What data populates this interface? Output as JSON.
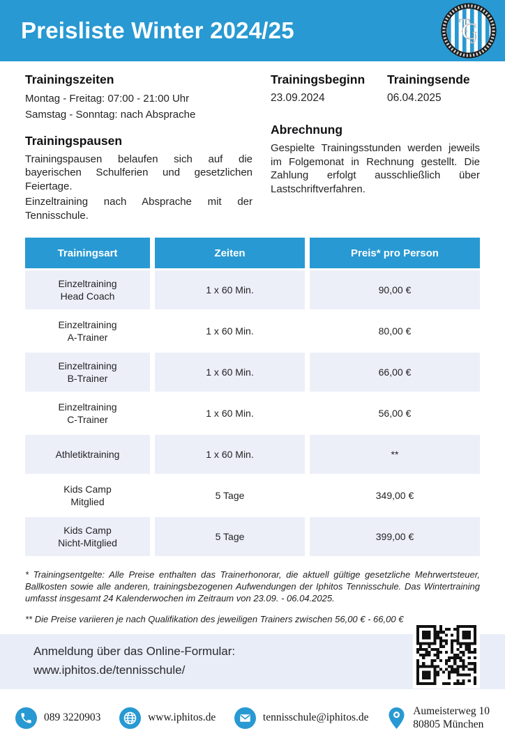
{
  "header": {
    "title": "Preisliste Winter 2024/25",
    "logo_icon": "club-crest-logo"
  },
  "colors": {
    "accent": "#2899D2",
    "table_row": "#EDEFF8",
    "signup_banner": "#E9EDF7"
  },
  "info": {
    "trainingszeiten": {
      "heading": "Trainingszeiten",
      "line1": "Montag - Freitag: 07:00 - 21:00 Uhr",
      "line2": "Samstag - Sonntag: nach Absprache"
    },
    "trainingsbeginn": {
      "heading": "Trainingsbeginn",
      "value": "23.09.2024"
    },
    "trainingsende": {
      "heading": "Trainingsende",
      "value": "06.04.2025"
    },
    "trainingspausen": {
      "heading": "Trainingspausen",
      "para1": "Trainingspausen belaufen sich auf die bayerischen Schulferien und gesetzlichen Feiertage.",
      "para2": "Einzeltraining nach Absprache mit der Tennisschule."
    },
    "abrechnung": {
      "heading": "Abrechnung",
      "para": "Gespielte Trainingsstunden werden jeweils im Folgemonat in Rechnung gestellt. Die Zahlung erfolgt ausschließlich über Lastschriftverfahren."
    }
  },
  "table": {
    "headers": [
      "Trainingsart",
      "Zeiten",
      "Preis* pro Person"
    ],
    "rows": [
      {
        "art": "Einzeltraining\nHead Coach",
        "zeiten": "1 x 60 Min.",
        "preis": "90,00 €"
      },
      {
        "art": "Einzeltraining\nA-Trainer",
        "zeiten": "1 x 60 Min.",
        "preis": "80,00 €"
      },
      {
        "art": "Einzeltraining\nB-Trainer",
        "zeiten": "1 x 60 Min.",
        "preis": "66,00 €"
      },
      {
        "art": "Einzeltraining\nC-Trainer",
        "zeiten": "1 x 60 Min.",
        "preis": "56,00 €"
      },
      {
        "art": "Athletiktraining",
        "zeiten": "1 x 60 Min.",
        "preis": "**"
      },
      {
        "art": "Kids Camp\nMitglied",
        "zeiten": "5 Tage",
        "preis": "349,00 €"
      },
      {
        "art": "Kids Camp\nNicht-Mitglied",
        "zeiten": "5 Tage",
        "preis": "399,00 €"
      }
    ]
  },
  "footnotes": {
    "note1": "* Trainingsentgelte: Alle Preise enthalten das Trainerhonorar, die aktuell gültige gesetzliche Mehrwertsteuer, Ballkosten sowie alle anderen, trainingsbezogenen Aufwendungen der Iphitos Tennisschule.  Das Wintertraining umfasst insgesamt 24 Kalenderwochen im Zeitraum von 23.09. - 06.04.2025.",
    "note2": "** Die Preise variieren je nach Qualifikation des jeweiligen Trainers zwischen 56,00 € - 66,00 €"
  },
  "signup": {
    "line1": "Anmeldung über das Online-Formular:",
    "url": "www.iphitos.de/tennisschule/",
    "qr_icon": "qr-code"
  },
  "contacts": {
    "phone": {
      "icon": "phone-icon",
      "value": "089 3220903"
    },
    "website": {
      "icon": "globe-icon",
      "value": "www.iphitos.de"
    },
    "email": {
      "icon": "mail-icon",
      "value": "tennisschule@iphitos.de"
    },
    "address": {
      "icon": "location-pin-icon",
      "value": "Aumeisterweg 10\n80805 München"
    }
  }
}
